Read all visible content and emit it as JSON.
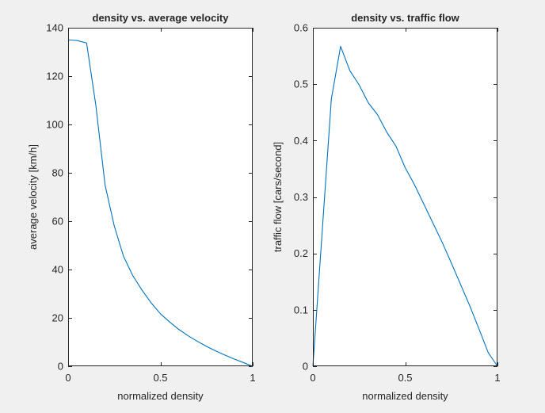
{
  "colors": {
    "background": "#f0f0f0",
    "axes": "#ffffff",
    "series": "#0072bd"
  },
  "chart_data": [
    {
      "type": "line",
      "title": "density vs. average velocity",
      "xlabel": "normalized density",
      "ylabel": "average velocity [km/h]",
      "xlim": [
        0,
        1
      ],
      "ylim": [
        0,
        140
      ],
      "xticks": [
        0,
        0.5,
        1
      ],
      "xtick_labels": [
        "0",
        "0.5",
        "1"
      ],
      "yticks": [
        0,
        20,
        40,
        60,
        80,
        100,
        120,
        140
      ],
      "ytick_labels": [
        "0",
        "20",
        "40",
        "60",
        "80",
        "100",
        "120",
        "140"
      ],
      "grid": false,
      "series": [
        {
          "x": [
            0,
            0.05,
            0.1,
            0.15,
            0.2,
            0.25,
            0.3,
            0.35,
            0.4,
            0.45,
            0.5,
            0.55,
            0.6,
            0.65,
            0.7,
            0.75,
            0.8,
            0.85,
            0.9,
            0.95,
            1
          ],
          "y": [
            135,
            134.7,
            133.7,
            108,
            75,
            58,
            45.5,
            37.5,
            31.5,
            26.2,
            21.7,
            18.3,
            15.2,
            12.6,
            10.3,
            8.2,
            6.3,
            4.6,
            3.0,
            1.5,
            0
          ]
        }
      ]
    },
    {
      "type": "line",
      "title": "density vs. traffic flow",
      "xlabel": "normalized density",
      "ylabel": "traffic flow [cars/second]",
      "xlim": [
        0,
        1
      ],
      "ylim": [
        0,
        0.6
      ],
      "xticks": [
        0,
        0.5,
        1
      ],
      "xtick_labels": [
        "0",
        "0.5",
        "1"
      ],
      "yticks": [
        0,
        0.1,
        0.2,
        0.3,
        0.4,
        0.5,
        0.6
      ],
      "ytick_labels": [
        "0",
        "0.1",
        "0.2",
        "0.3",
        "0.4",
        "0.5",
        "0.6"
      ],
      "grid": false,
      "series": [
        {
          "x": [
            0,
            0.1,
            0.15,
            0.2,
            0.25,
            0.3,
            0.35,
            0.4,
            0.45,
            0.5,
            0.55,
            0.6,
            0.65,
            0.7,
            0.75,
            0.8,
            0.85,
            0.9,
            0.95,
            1
          ],
          "y": [
            0,
            0.474,
            0.567,
            0.524,
            0.499,
            0.467,
            0.446,
            0.415,
            0.39,
            0.352,
            0.322,
            0.288,
            0.254,
            0.22,
            0.183,
            0.145,
            0.107,
            0.066,
            0.024,
            0
          ]
        }
      ]
    }
  ]
}
